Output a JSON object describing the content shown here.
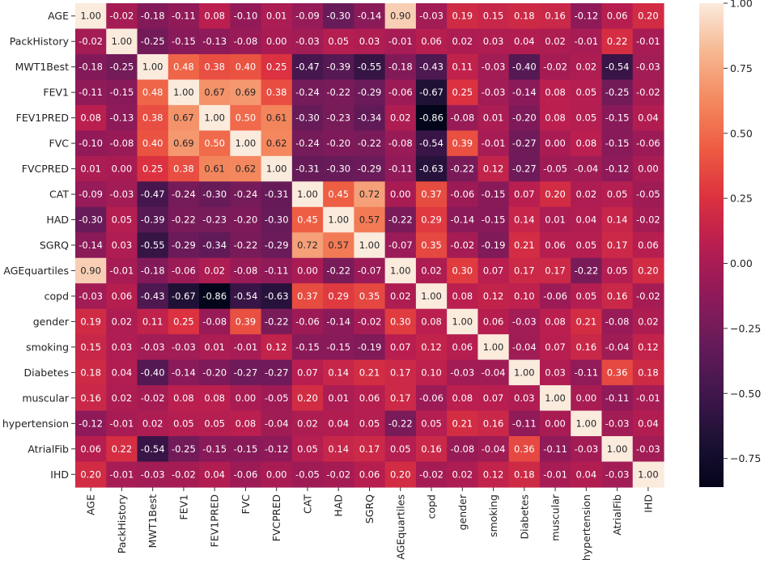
{
  "chart_data": {
    "type": "heatmap",
    "title": "",
    "xlabel": "",
    "ylabel": "",
    "labels": [
      "AGE",
      "PackHistory",
      "MWT1Best",
      "FEV1",
      "FEV1PRED",
      "FVC",
      "FVCPRED",
      "CAT",
      "HAD",
      "SGRQ",
      "AGEquartiles",
      "copd",
      "gender",
      "smoking",
      "Diabetes",
      "muscular",
      "hypertension",
      "AtrialFib",
      "IHD"
    ],
    "matrix": [
      [
        1.0,
        -0.02,
        -0.18,
        -0.11,
        0.08,
        -0.1,
        0.01,
        -0.09,
        -0.3,
        -0.14,
        0.9,
        -0.03,
        0.19,
        0.15,
        0.18,
        0.16,
        -0.12,
        0.06,
        0.2
      ],
      [
        -0.02,
        1.0,
        -0.25,
        -0.15,
        -0.13,
        -0.08,
        0.0,
        -0.03,
        0.05,
        0.03,
        -0.01,
        0.06,
        0.02,
        0.03,
        0.04,
        0.02,
        -0.01,
        0.22,
        -0.01
      ],
      [
        -0.18,
        -0.25,
        1.0,
        0.48,
        0.38,
        0.4,
        0.25,
        -0.47,
        -0.39,
        -0.55,
        -0.18,
        -0.43,
        0.11,
        -0.03,
        -0.4,
        -0.02,
        0.02,
        -0.54,
        -0.03
      ],
      [
        -0.11,
        -0.15,
        0.48,
        1.0,
        0.67,
        0.69,
        0.38,
        -0.24,
        -0.22,
        -0.29,
        -0.06,
        -0.67,
        0.25,
        -0.03,
        -0.14,
        0.08,
        0.05,
        -0.25,
        -0.02
      ],
      [
        0.08,
        -0.13,
        0.38,
        0.67,
        1.0,
        0.5,
        0.61,
        -0.3,
        -0.23,
        -0.34,
        0.02,
        -0.86,
        -0.08,
        0.01,
        -0.2,
        0.08,
        0.05,
        -0.15,
        0.04
      ],
      [
        -0.1,
        -0.08,
        0.4,
        0.69,
        0.5,
        1.0,
        0.62,
        -0.24,
        -0.2,
        -0.22,
        -0.08,
        -0.54,
        0.39,
        -0.01,
        -0.27,
        -0.0,
        0.08,
        -0.15,
        -0.06
      ],
      [
        0.01,
        0.0,
        0.25,
        0.38,
        0.61,
        0.62,
        1.0,
        -0.31,
        -0.3,
        -0.29,
        -0.11,
        -0.63,
        -0.22,
        0.12,
        -0.27,
        -0.05,
        -0.04,
        -0.12,
        0.0
      ],
      [
        -0.09,
        -0.03,
        -0.47,
        -0.24,
        -0.3,
        -0.24,
        -0.31,
        1.0,
        0.45,
        0.72,
        -0.0,
        0.37,
        -0.06,
        -0.15,
        0.07,
        0.2,
        0.02,
        0.05,
        -0.05
      ],
      [
        -0.3,
        0.05,
        -0.39,
        -0.22,
        -0.23,
        -0.2,
        -0.3,
        0.45,
        1.0,
        0.57,
        -0.22,
        0.29,
        -0.14,
        -0.15,
        0.14,
        0.01,
        0.04,
        0.14,
        -0.02
      ],
      [
        -0.14,
        0.03,
        -0.55,
        -0.29,
        -0.34,
        -0.22,
        -0.29,
        0.72,
        0.57,
        1.0,
        -0.07,
        0.35,
        -0.02,
        -0.19,
        0.21,
        0.06,
        0.05,
        0.17,
        0.06
      ],
      [
        0.9,
        -0.01,
        -0.18,
        -0.06,
        0.02,
        -0.08,
        -0.11,
        -0.0,
        -0.22,
        -0.07,
        1.0,
        0.02,
        0.3,
        0.07,
        0.17,
        0.17,
        -0.22,
        0.05,
        0.2
      ],
      [
        -0.03,
        0.06,
        -0.43,
        -0.67,
        -0.86,
        -0.54,
        -0.63,
        0.37,
        0.29,
        0.35,
        0.02,
        1.0,
        0.08,
        0.12,
        0.1,
        -0.06,
        0.05,
        0.16,
        -0.02
      ],
      [
        0.19,
        0.02,
        0.11,
        0.25,
        -0.08,
        0.39,
        -0.22,
        -0.06,
        -0.14,
        -0.02,
        0.3,
        0.08,
        1.0,
        0.06,
        -0.03,
        0.08,
        0.21,
        -0.08,
        0.02
      ],
      [
        0.15,
        0.03,
        -0.03,
        -0.03,
        0.01,
        -0.01,
        0.12,
        -0.15,
        -0.15,
        -0.19,
        0.07,
        0.12,
        0.06,
        1.0,
        -0.04,
        0.07,
        0.16,
        -0.04,
        0.12
      ],
      [
        0.18,
        0.04,
        -0.4,
        -0.14,
        -0.2,
        -0.27,
        -0.27,
        0.07,
        0.14,
        0.21,
        0.17,
        0.1,
        -0.03,
        -0.04,
        1.0,
        0.03,
        -0.11,
        0.36,
        0.18
      ],
      [
        0.16,
        0.02,
        -0.02,
        0.08,
        0.08,
        -0.0,
        -0.05,
        0.2,
        0.01,
        0.06,
        0.17,
        -0.06,
        0.08,
        0.07,
        0.03,
        1.0,
        0.0,
        -0.11,
        -0.01
      ],
      [
        -0.12,
        -0.01,
        0.02,
        0.05,
        0.05,
        0.08,
        -0.04,
        0.02,
        0.04,
        0.05,
        -0.22,
        0.05,
        0.21,
        0.16,
        -0.11,
        0.0,
        1.0,
        -0.03,
        0.04
      ],
      [
        0.06,
        0.22,
        -0.54,
        -0.25,
        -0.15,
        -0.15,
        -0.12,
        0.05,
        0.14,
        0.17,
        0.05,
        0.16,
        -0.08,
        -0.04,
        0.36,
        -0.11,
        -0.03,
        1.0,
        -0.03
      ],
      [
        0.2,
        -0.01,
        -0.03,
        -0.02,
        0.04,
        -0.06,
        0.0,
        -0.05,
        -0.02,
        0.06,
        0.2,
        -0.02,
        0.02,
        0.12,
        0.18,
        -0.01,
        0.04,
        -0.03,
        1.0
      ]
    ],
    "colorbar": {
      "range": [
        -0.86,
        1.0
      ],
      "ticks": [
        1.0,
        0.75,
        0.5,
        0.25,
        0.0,
        -0.25,
        -0.5,
        -0.75
      ],
      "tick_labels": [
        "1.00",
        "0.75",
        "0.50",
        "0.25",
        "0.00",
        "−0.25",
        "−0.50",
        "−0.75"
      ],
      "colormap": "rocket"
    }
  }
}
